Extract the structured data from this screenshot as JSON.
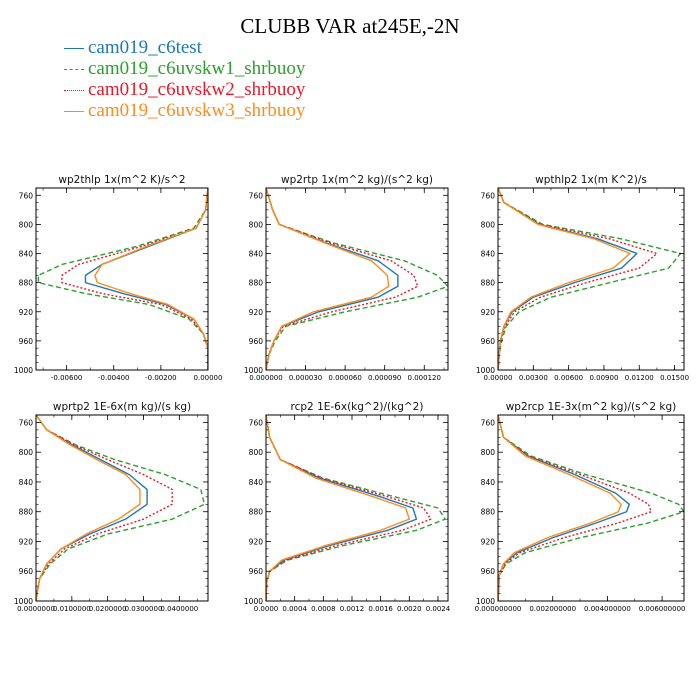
{
  "title": "CLUBB VAR at245E,-2N",
  "legend": [
    {
      "name": "cam019_c6test",
      "color": "#1f77b4",
      "dash": "solid"
    },
    {
      "name": "cam019_c6uvskw1_shrbuoy",
      "color": "#2ca02c",
      "dash": "dashed"
    },
    {
      "name": "cam019_c6uvskw2_shrbuoy",
      "color": "#e8182b",
      "dash": "dotted"
    },
    {
      "name": "cam019_c6uvskw3_shrbuoy",
      "color": "#ff8c1a",
      "dash": "solid"
    }
  ],
  "colors": {
    "background": "#ffffff",
    "axis": "#000000"
  },
  "chart_data": [
    {
      "type": "line",
      "title": "wp2thlp   1x(m^2 K)/s^2",
      "ylim": [
        1000,
        750
      ],
      "xlim": [
        -0.0073,
        0.0
      ],
      "yticks": [
        760,
        800,
        840,
        880,
        920,
        960,
        1000
      ],
      "xticks": [
        -0.006,
        -0.004,
        -0.002,
        0.0
      ],
      "xtick_labels": [
        "-0.00600",
        "-0.00400",
        "-0.00200",
        "0.00000"
      ],
      "y": [
        750,
        780,
        805,
        830,
        855,
        870,
        880,
        895,
        910,
        930,
        950,
        970,
        990,
        1000
      ],
      "series": [
        {
          "name": "cam019_c6test",
          "values": [
            0,
            -0.0001,
            -0.0005,
            -0.0025,
            -0.0045,
            -0.0052,
            -0.0052,
            -0.0036,
            -0.0018,
            -0.0006,
            -0.0002,
            0,
            0,
            0
          ]
        },
        {
          "name": "cam019_c6uvskw1_shrbuoy",
          "values": [
            0,
            -0.0001,
            -0.0006,
            -0.003,
            -0.0062,
            -0.0072,
            -0.0072,
            -0.0052,
            -0.0025,
            -0.0008,
            -0.0002,
            0,
            0,
            0
          ]
        },
        {
          "name": "cam019_c6uvskw2_shrbuoy",
          "values": [
            0,
            -0.0001,
            -0.0005,
            -0.0028,
            -0.0055,
            -0.0062,
            -0.0062,
            -0.0045,
            -0.002,
            -0.0007,
            -0.0002,
            0,
            0,
            0
          ]
        },
        {
          "name": "cam019_c6uvskw3_shrbuoy",
          "values": [
            0,
            -0.0001,
            -0.0005,
            -0.0026,
            -0.0045,
            -0.0048,
            -0.0047,
            -0.0033,
            -0.0017,
            -0.0006,
            -0.0002,
            0,
            0,
            0
          ]
        }
      ]
    },
    {
      "type": "line",
      "title": "wp2rtp   1x(m^2 kg)/(s^2 kg)",
      "ylim": [
        1000,
        750
      ],
      "xlim": [
        0.0,
        0.000138
      ],
      "yticks": [
        760,
        800,
        840,
        880,
        920,
        960,
        1000
      ],
      "xticks": [
        0.0,
        3e-05,
        6e-05,
        9e-05,
        0.00012
      ],
      "xtick_labels": [
        "0.000000",
        "0.000030",
        "0.000060",
        "0.000090",
        "0.000120"
      ],
      "y": [
        750,
        780,
        800,
        825,
        850,
        870,
        885,
        900,
        920,
        940,
        960,
        980,
        1000
      ],
      "series": [
        {
          "name": "cam019_c6test",
          "values": [
            0,
            5e-06,
            1e-05,
            4.5e-05,
            8.5e-05,
            0.0001,
            0.0001,
            8.5e-05,
            4e-05,
            1.2e-05,
            6e-06,
            2e-06,
            0
          ]
        },
        {
          "name": "cam019_c6uvskw1_shrbuoy",
          "values": [
            0,
            5e-06,
            1e-05,
            5e-05,
            0.000105,
            0.00013,
            0.000138,
            0.000115,
            6e-05,
            1.5e-05,
            7e-06,
            2e-06,
            0
          ]
        },
        {
          "name": "cam019_c6uvskw2_shrbuoy",
          "values": [
            0,
            5e-06,
            1e-05,
            4.8e-05,
            9.5e-05,
            0.000112,
            0.000115,
            9.8e-05,
            5e-05,
            1.3e-05,
            6e-06,
            2e-06,
            0
          ]
        },
        {
          "name": "cam019_c6uvskw3_shrbuoy",
          "values": [
            0,
            5e-06,
            1e-05,
            4.4e-05,
            8e-05,
            9.2e-05,
            9.3e-05,
            8e-05,
            3.6e-05,
            1.2e-05,
            6e-06,
            2e-06,
            0
          ]
        }
      ]
    },
    {
      "type": "line",
      "title": "wpthlp2   1x(m K^2)/s",
      "ylim": [
        1000,
        750
      ],
      "xlim": [
        0.0,
        0.0158
      ],
      "yticks": [
        760,
        800,
        840,
        880,
        920,
        960,
        1000
      ],
      "xticks": [
        0.0,
        0.003,
        0.006,
        0.009,
        0.012,
        0.015
      ],
      "xtick_labels": [
        "0.00000",
        "0.00300",
        "0.00600",
        "0.00900",
        "0.01200",
        "0.01500"
      ],
      "y": [
        750,
        770,
        800,
        820,
        840,
        860,
        880,
        900,
        920,
        940,
        960,
        980,
        1000
      ],
      "series": [
        {
          "name": "cam019_c6test",
          "values": [
            0,
            0.0005,
            0.0035,
            0.0085,
            0.0118,
            0.0105,
            0.0065,
            0.003,
            0.0012,
            0.0005,
            0.0002,
            0.0001,
            0
          ]
        },
        {
          "name": "cam019_c6uvskw1_shrbuoy",
          "values": [
            0,
            0.0005,
            0.0038,
            0.0105,
            0.0155,
            0.0145,
            0.0095,
            0.0045,
            0.0018,
            0.0007,
            0.0003,
            0.0001,
            0
          ]
        },
        {
          "name": "cam019_c6uvskw2_shrbuoy",
          "values": [
            0,
            0.0005,
            0.0036,
            0.0095,
            0.0135,
            0.012,
            0.0075,
            0.0036,
            0.0014,
            0.0006,
            0.0002,
            0.0001,
            0
          ]
        },
        {
          "name": "cam019_c6uvskw3_shrbuoy",
          "values": [
            0,
            0.0005,
            0.0034,
            0.0082,
            0.0112,
            0.0098,
            0.006,
            0.0028,
            0.0011,
            0.0005,
            0.0002,
            0.0001,
            0
          ]
        }
      ]
    },
    {
      "type": "line",
      "title": "wprtp2   1E-6x(m kg)/(s kg)",
      "ylim": [
        1000,
        750
      ],
      "xlim": [
        0.0,
        0.048
      ],
      "yticks": [
        760,
        800,
        840,
        880,
        920,
        960,
        1000
      ],
      "xticks": [
        0.0,
        0.01,
        0.02,
        0.03,
        0.04
      ],
      "xtick_labels": [
        "0.0000000",
        "0.0100000",
        "0.0200000",
        "0.0300000",
        "0.0400000"
      ],
      "y": [
        750,
        770,
        790,
        810,
        830,
        850,
        870,
        890,
        910,
        930,
        950,
        970,
        990,
        1000
      ],
      "series": [
        {
          "name": "cam019_c6test",
          "values": [
            0,
            0.003,
            0.01,
            0.018,
            0.026,
            0.031,
            0.031,
            0.025,
            0.015,
            0.007,
            0.003,
            0.001,
            0.0003,
            0
          ]
        },
        {
          "name": "cam019_c6uvskw1_shrbuoy",
          "values": [
            0,
            0.003,
            0.011,
            0.022,
            0.036,
            0.046,
            0.047,
            0.038,
            0.02,
            0.009,
            0.004,
            0.001,
            0.0003,
            0
          ]
        },
        {
          "name": "cam019_c6uvskw2_shrbuoy",
          "values": [
            0,
            0.003,
            0.0105,
            0.02,
            0.03,
            0.038,
            0.038,
            0.03,
            0.017,
            0.008,
            0.0035,
            0.001,
            0.0003,
            0
          ]
        },
        {
          "name": "cam019_c6uvskw3_shrbuoy",
          "values": [
            0,
            0.003,
            0.0095,
            0.017,
            0.025,
            0.029,
            0.029,
            0.023,
            0.014,
            0.007,
            0.003,
            0.001,
            0.0003,
            0
          ]
        }
      ]
    },
    {
      "type": "line",
      "title": "rcp2   1E-6x(kg^2)/(kg^2)",
      "ylim": [
        1000,
        750
      ],
      "xlim": [
        0.0,
        0.00254
      ],
      "yticks": [
        760,
        800,
        840,
        880,
        920,
        960,
        1000
      ],
      "xticks": [
        0.0,
        0.0004,
        0.0008,
        0.0012,
        0.0016,
        0.002,
        0.0024
      ],
      "xtick_labels": [
        "0.0000",
        "0.0004",
        "0.0008",
        "0.0012",
        "0.0016",
        "0.0020",
        "0.0024"
      ],
      "y": [
        750,
        780,
        810,
        835,
        860,
        875,
        890,
        905,
        925,
        945,
        960,
        975,
        1000
      ],
      "series": [
        {
          "name": "cam019_c6test",
          "values": [
            0,
            5e-05,
            0.0002,
            0.00075,
            0.0016,
            0.00205,
            0.0021,
            0.0017,
            0.0009,
            0.00025,
            5e-05,
            1e-05,
            0
          ]
        },
        {
          "name": "cam019_c6uvskw1_shrbuoy",
          "values": [
            0,
            5e-05,
            0.0002,
            0.0008,
            0.0018,
            0.0024,
            0.0025,
            0.0021,
            0.0011,
            0.0003,
            5e-05,
            1e-05,
            0
          ]
        },
        {
          "name": "cam019_c6uvskw2_shrbuoy",
          "values": [
            0,
            5e-05,
            0.0002,
            0.00078,
            0.0017,
            0.0022,
            0.0023,
            0.0019,
            0.001,
            0.00028,
            5e-05,
            1e-05,
            0
          ]
        },
        {
          "name": "cam019_c6uvskw3_shrbuoy",
          "values": [
            0,
            5e-05,
            0.0002,
            0.0007,
            0.0015,
            0.00195,
            0.002,
            0.0016,
            0.00085,
            0.00022,
            5e-05,
            1e-05,
            0
          ]
        }
      ]
    },
    {
      "type": "line",
      "title": "wp2rcp   1E-3x(m^2 kg)/(s^2 kg)",
      "ylim": [
        1000,
        750
      ],
      "xlim": [
        0.0,
        0.0068
      ],
      "yticks": [
        760,
        800,
        840,
        880,
        920,
        960,
        1000
      ],
      "xticks": [
        0.0,
        0.002,
        0.004,
        0.006
      ],
      "xtick_labels": [
        "0.000000000",
        "0.002000000",
        "0.004000000",
        "0.006000000"
      ],
      "y": [
        750,
        780,
        805,
        830,
        855,
        870,
        880,
        895,
        915,
        935,
        950,
        965,
        1000
      ],
      "series": [
        {
          "name": "cam019_c6test",
          "values": [
            0,
            0.0002,
            0.0011,
            0.0028,
            0.0043,
            0.0048,
            0.0047,
            0.0036,
            0.002,
            0.0007,
            0.0002,
            5e-05,
            0
          ]
        },
        {
          "name": "cam019_c6uvskw1_shrbuoy",
          "values": [
            0,
            0.0002,
            0.0012,
            0.0032,
            0.0056,
            0.0066,
            0.0068,
            0.0055,
            0.003,
            0.001,
            0.0003,
            5e-05,
            0
          ]
        },
        {
          "name": "cam019_c6uvskw2_shrbuoy",
          "values": [
            0,
            0.0002,
            0.0011,
            0.003,
            0.0048,
            0.0055,
            0.0056,
            0.0044,
            0.0024,
            0.0008,
            0.00025,
            5e-05,
            0
          ]
        },
        {
          "name": "cam019_c6uvskw3_shrbuoy",
          "values": [
            0,
            0.0002,
            0.001,
            0.0026,
            0.0041,
            0.0045,
            0.0044,
            0.0034,
            0.0018,
            0.0006,
            0.0002,
            5e-05,
            0
          ]
        }
      ]
    }
  ]
}
